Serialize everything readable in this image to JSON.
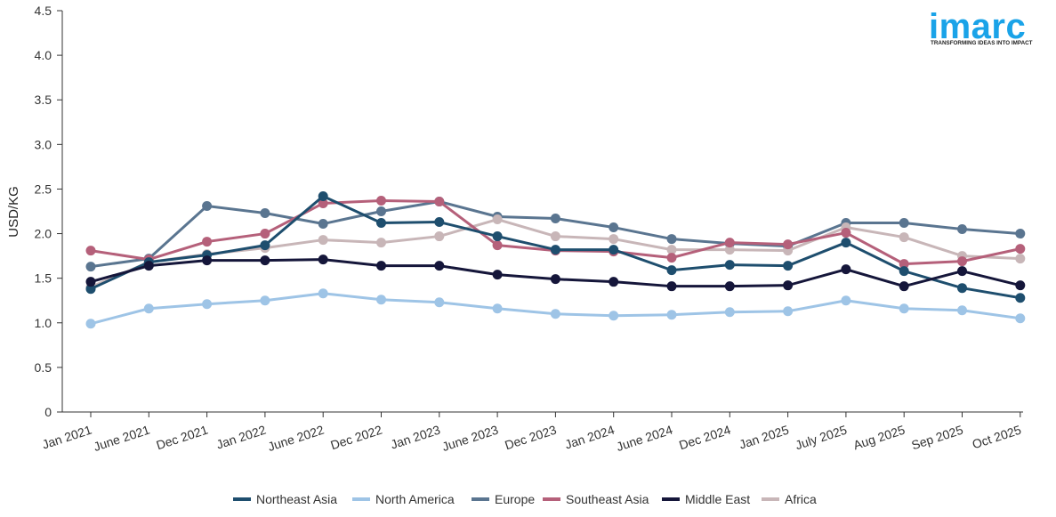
{
  "brand": {
    "logo_text": "imarc",
    "tagline": "TRANSFORMING IDEAS INTO IMPACT",
    "color": "#1aa3e8"
  },
  "chart_data": {
    "type": "line",
    "ylabel": "USD/KG",
    "xlabel": "",
    "ylim": [
      0,
      4.5
    ],
    "yticks": [
      0,
      0.5,
      1.0,
      1.5,
      2.0,
      2.5,
      3.0,
      3.5,
      4.0,
      4.5
    ],
    "ytick_labels": [
      "0",
      "0.5",
      "1.0",
      "1.5",
      "2.0",
      "2.5",
      "3.0",
      "3.5",
      "4.0",
      "4.5"
    ],
    "grid": false,
    "legend_position": "bottom",
    "categories": [
      "Jan 2021",
      "June 2021",
      "Dec 2021",
      "Jan 2022",
      "June 2022",
      "Dec 2022",
      "Jan 2023",
      "June 2023",
      "Dec 2023",
      "Jan 2024",
      "June 2024",
      "Dec 2024",
      "Jan 2025",
      "July 2025",
      "Aug 2025",
      "Sep 2025",
      "Oct 2025"
    ],
    "series": [
      {
        "name": "Europe",
        "color": "#5a7590",
        "values": [
          1.63,
          1.72,
          2.31,
          2.23,
          2.11,
          2.25,
          2.36,
          2.19,
          2.17,
          2.07,
          1.94,
          1.89,
          1.86,
          2.12,
          2.12,
          2.05,
          2.0
        ]
      },
      {
        "name": "Africa",
        "color": "#c8b6b8",
        "values": [
          1.4,
          1.68,
          1.77,
          1.84,
          1.93,
          1.9,
          1.97,
          2.16,
          1.97,
          1.94,
          1.82,
          1.82,
          1.81,
          2.07,
          1.96,
          1.75,
          1.72
        ]
      },
      {
        "name": "Southeast Asia",
        "color": "#b5607a",
        "values": [
          1.81,
          1.71,
          1.91,
          2.0,
          2.34,
          2.37,
          2.36,
          1.87,
          1.81,
          1.8,
          1.73,
          1.9,
          1.88,
          2.01,
          1.66,
          1.69,
          1.83
        ]
      },
      {
        "name": "Northeast Asia",
        "color": "#1e4e6e",
        "values": [
          1.38,
          1.68,
          1.76,
          1.87,
          2.42,
          2.12,
          2.13,
          1.97,
          1.82,
          1.82,
          1.59,
          1.65,
          1.64,
          1.9,
          1.58,
          1.39,
          1.28
        ]
      },
      {
        "name": "Middle East",
        "color": "#15163a",
        "values": [
          1.46,
          1.64,
          1.7,
          1.7,
          1.71,
          1.64,
          1.64,
          1.54,
          1.49,
          1.46,
          1.41,
          1.41,
          1.42,
          1.6,
          1.41,
          1.58,
          1.42
        ]
      },
      {
        "name": "North America",
        "color": "#9ec4e6",
        "values": [
          0.99,
          1.16,
          1.21,
          1.25,
          1.33,
          1.26,
          1.23,
          1.16,
          1.1,
          1.08,
          1.09,
          1.12,
          1.13,
          1.25,
          1.16,
          1.14,
          1.05
        ]
      }
    ],
    "legend_order": [
      "Northeast Asia",
      "North America",
      "Europe",
      "Southeast Asia",
      "Middle East",
      "Africa"
    ]
  }
}
